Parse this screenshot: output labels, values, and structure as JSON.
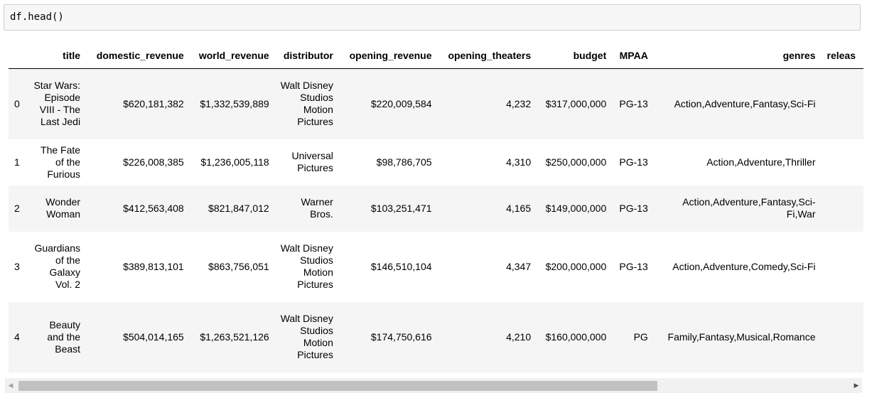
{
  "input": {
    "code": "df.head()"
  },
  "table": {
    "columns": [
      "",
      "title",
      "domestic_revenue",
      "world_revenue",
      "distributor",
      "opening_revenue",
      "opening_theaters",
      "budget",
      "MPAA",
      "genres",
      "releas"
    ],
    "rows": [
      {
        "index": "0",
        "title": "Star Wars: Episode VIII - The Last Jedi",
        "domestic_revenue": "$620,181,382",
        "world_revenue": "$1,332,539,889",
        "distributor": "Walt Disney Studios Motion Pictures",
        "opening_revenue": "$220,009,584",
        "opening_theaters": "4,232",
        "budget": "$317,000,000",
        "mpaa": "PG-13",
        "genres": "Action,Adventure,Fantasy,Sci-Fi"
      },
      {
        "index": "1",
        "title": "The Fate of the Furious",
        "domestic_revenue": "$226,008,385",
        "world_revenue": "$1,236,005,118",
        "distributor": "Universal Pictures",
        "opening_revenue": "$98,786,705",
        "opening_theaters": "4,310",
        "budget": "$250,000,000",
        "mpaa": "PG-13",
        "genres": "Action,Adventure,Thriller"
      },
      {
        "index": "2",
        "title": "Wonder Woman",
        "domestic_revenue": "$412,563,408",
        "world_revenue": "$821,847,012",
        "distributor": "Warner Bros.",
        "opening_revenue": "$103,251,471",
        "opening_theaters": "4,165",
        "budget": "$149,000,000",
        "mpaa": "PG-13",
        "genres": "Action,Adventure,Fantasy,Sci-Fi,War"
      },
      {
        "index": "3",
        "title": "Guardians of the Galaxy Vol. 2",
        "domestic_revenue": "$389,813,101",
        "world_revenue": "$863,756,051",
        "distributor": "Walt Disney Studios Motion Pictures",
        "opening_revenue": "$146,510,104",
        "opening_theaters": "4,347",
        "budget": "$200,000,000",
        "mpaa": "PG-13",
        "genres": "Action,Adventure,Comedy,Sci-Fi"
      },
      {
        "index": "4",
        "title": "Beauty and the Beast",
        "domestic_revenue": "$504,014,165",
        "world_revenue": "$1,263,521,126",
        "distributor": "Walt Disney Studios Motion Pictures",
        "opening_revenue": "$174,750,616",
        "opening_theaters": "4,210",
        "budget": "$160,000,000",
        "mpaa": "PG",
        "genres": "Family,Fantasy,Musical,Romance"
      }
    ]
  },
  "scrollbar": {
    "left_icon": "triangle-left-icon",
    "right_icon": "triangle-right-icon",
    "scroll_fraction": 0.77
  }
}
